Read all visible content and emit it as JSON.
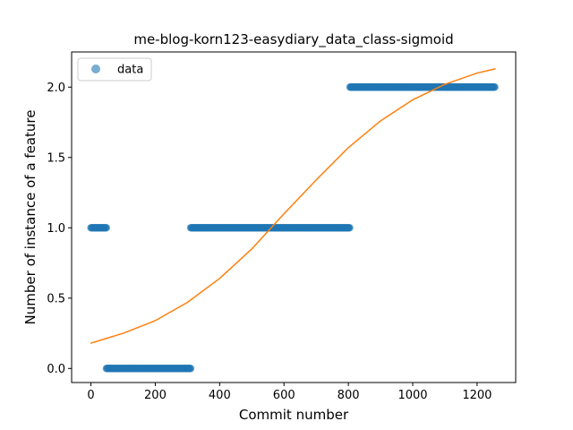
{
  "chart_data": {
    "type": "scatter",
    "title": "me-blog-korn123-easydiary_data_class-sigmoid",
    "xlabel": "Commit number",
    "ylabel": "Number of instance of a feature",
    "xlim": [
      -60,
      1320
    ],
    "ylim": [
      -0.1,
      2.25
    ],
    "x_ticks": [
      0,
      200,
      400,
      600,
      800,
      1000,
      1200
    ],
    "y_ticks": [
      0.0,
      0.5,
      1.0,
      1.5,
      2.0
    ],
    "x_tick_labels": [
      "0",
      "200",
      "400",
      "600",
      "800",
      "1000",
      "1200"
    ],
    "y_tick_labels": [
      "0.0",
      "0.5",
      "1.0",
      "1.5",
      "2.0"
    ],
    "grid": false,
    "legend": {
      "placement": "upper-left",
      "entries": [
        "data"
      ]
    },
    "series": [
      {
        "name": "data",
        "style": "points",
        "color": "#1f77b4",
        "runs": [
          {
            "x_start": 0,
            "x_end": 48,
            "y": 1
          },
          {
            "x_start": 48,
            "x_end": 310,
            "y": 0
          },
          {
            "x_start": 310,
            "x_end": 805,
            "y": 1
          },
          {
            "x_start": 805,
            "x_end": 1256,
            "y": 2
          }
        ]
      },
      {
        "style": "line",
        "color": "#ff7f0e",
        "x": [
          0,
          100,
          200,
          300,
          400,
          500,
          600,
          700,
          800,
          900,
          1000,
          1100,
          1200,
          1256
        ],
        "y": [
          0.18,
          0.25,
          0.34,
          0.47,
          0.64,
          0.85,
          1.1,
          1.34,
          1.57,
          1.76,
          1.91,
          2.02,
          2.1,
          2.13
        ]
      }
    ]
  }
}
